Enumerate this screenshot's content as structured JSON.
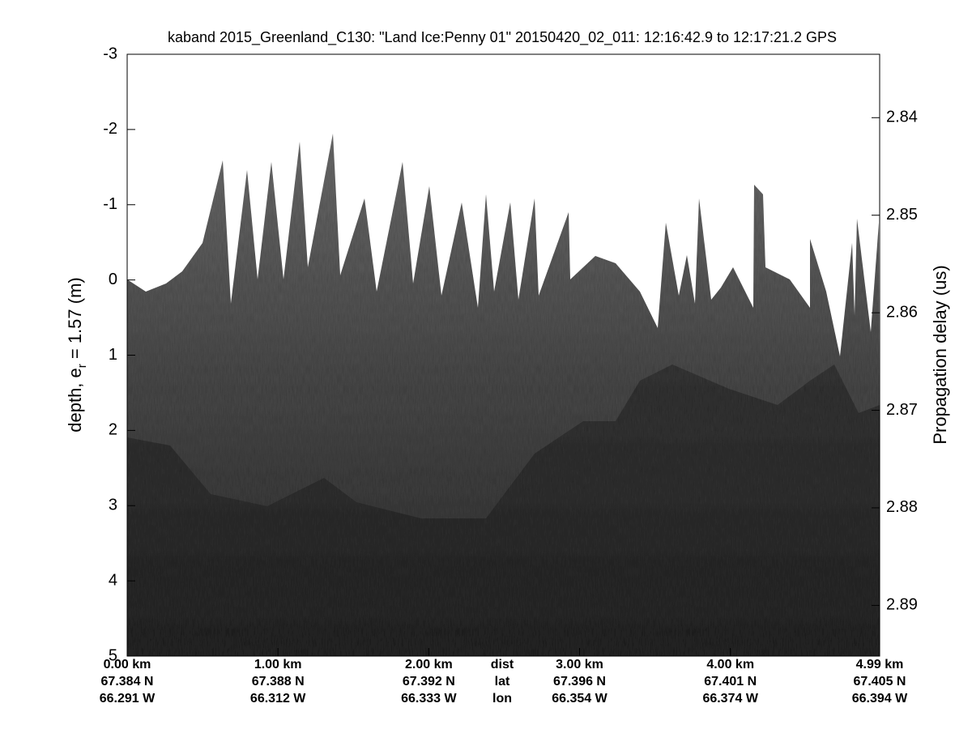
{
  "chart_data": {
    "type": "echogram",
    "title": "kaband 2015_Greenland_C130: \"Land Ice:Penny 01\"  20150420_02_011: 12:16:42.9 to 12:17:21.2 GPS",
    "ylabel": [
      "depth, e",
      "r",
      " = 1.57 (m)"
    ],
    "y2label": "Propagation delay (us)",
    "ylim": [
      -3,
      5
    ],
    "yticks": [
      -3,
      -2,
      -1,
      0,
      1,
      2,
      3,
      4,
      5
    ],
    "y2lim": [
      2.8335,
      2.8952
    ],
    "y2ticks": [
      2.84,
      2.85,
      2.86,
      2.87,
      2.88,
      2.89
    ],
    "xlim": [
      0,
      4.99
    ],
    "xticks": [
      {
        "value": 0,
        "label": "0.00 km"
      },
      {
        "value": 1,
        "label": "1.00 km"
      },
      {
        "value": 2,
        "label": "2.00 km"
      },
      {
        "value": 3,
        "label": "3.00 km"
      },
      {
        "value": 4,
        "label": "4.00 km"
      },
      {
        "value": 4.99,
        "label": "4.99 km"
      }
    ],
    "lat_labels": [
      "67.384 N",
      "67.388 N",
      "67.392 N",
      "67.396 N",
      "67.401 N",
      "67.405 N"
    ],
    "lon_labels": [
      "66.291 W",
      "66.312 W",
      "66.333 W",
      "66.354 W",
      "66.374 W",
      "66.394 W"
    ],
    "row_names": [
      "dist",
      "lat",
      "lon"
    ]
  }
}
